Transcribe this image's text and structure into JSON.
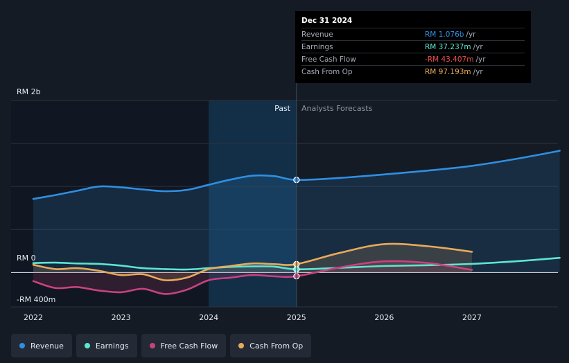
{
  "chart_data": {
    "type": "line",
    "x_labels": [
      "2022",
      "2023",
      "2024",
      "2025",
      "2026",
      "2027"
    ],
    "y_labels": {
      "top": "RM 2b",
      "zero": "RM 0",
      "bottom": "-RM 400m"
    },
    "ylim": [
      -400,
      2000
    ],
    "xlim": [
      2021.9,
      2028.0
    ],
    "divider_x": 2025.0,
    "highlight_range": [
      2024.0,
      2025.0
    ],
    "past_label": "Past",
    "forecast_label": "Analysts Forecasts",
    "series": [
      {
        "name": "Revenue",
        "color": "#2f8fe3",
        "fill": true,
        "x": [
          2022.0,
          2022.25,
          2022.5,
          2022.75,
          2023.0,
          2023.25,
          2023.5,
          2023.75,
          2024.0,
          2024.25,
          2024.5,
          2024.75,
          2025.0,
          2025.5,
          2026.0,
          2026.5,
          2027.0,
          2027.5,
          2028.0
        ],
        "y": [
          855,
          900,
          950,
          1000,
          990,
          965,
          945,
          960,
          1020,
          1080,
          1125,
          1120,
          1076,
          1100,
          1140,
          1185,
          1240,
          1320,
          1415
        ]
      },
      {
        "name": "Earnings",
        "color": "#5ee5d0",
        "fill": false,
        "x": [
          2022.0,
          2022.25,
          2022.5,
          2022.75,
          2023.0,
          2023.25,
          2023.5,
          2023.75,
          2024.0,
          2024.25,
          2024.5,
          2024.75,
          2025.0,
          2025.5,
          2026.0,
          2026.5,
          2027.0,
          2027.5,
          2028.0
        ],
        "y": [
          110,
          115,
          105,
          100,
          80,
          50,
          40,
          35,
          50,
          65,
          70,
          68,
          37,
          55,
          75,
          85,
          100,
          130,
          170
        ]
      },
      {
        "name": "Free Cash Flow",
        "color": "#c9427f",
        "fill": true,
        "x": [
          2022.0,
          2022.25,
          2022.5,
          2022.75,
          2023.0,
          2023.25,
          2023.5,
          2023.75,
          2024.0,
          2024.25,
          2024.5,
          2024.75,
          2025.0,
          2025.5,
          2026.0,
          2026.5,
          2027.0
        ],
        "y": [
          -100,
          -180,
          -170,
          -210,
          -230,
          -190,
          -250,
          -200,
          -90,
          -60,
          -30,
          -45,
          -43.4,
          60,
          130,
          110,
          30
        ]
      },
      {
        "name": "Cash From Op",
        "color": "#e9aa5b",
        "fill": true,
        "x": [
          2022.0,
          2022.25,
          2022.5,
          2022.75,
          2023.0,
          2023.25,
          2023.5,
          2023.75,
          2024.0,
          2024.25,
          2024.5,
          2024.75,
          2025.0,
          2025.5,
          2026.0,
          2026.5,
          2027.0
        ],
        "y": [
          90,
          40,
          50,
          20,
          -30,
          -20,
          -90,
          -60,
          40,
          75,
          105,
          97,
          97.2,
          230,
          330,
          305,
          240
        ]
      }
    ]
  },
  "tooltip": {
    "date": "Dec 31 2024",
    "rows": [
      {
        "label": "Revenue",
        "value": "RM 1.076b",
        "unit": "/yr",
        "color": "#2f8fe3"
      },
      {
        "label": "Earnings",
        "value": "RM 37.237m",
        "unit": "/yr",
        "color": "#5ee5d0"
      },
      {
        "label": "Free Cash Flow",
        "value": "-RM 43.407m",
        "unit": "/yr",
        "color": "#ee4d4d"
      },
      {
        "label": "Cash From Op",
        "value": "RM 97.193m",
        "unit": "/yr",
        "color": "#e9aa5b"
      }
    ]
  },
  "legend": [
    {
      "label": "Revenue",
      "color": "#2f8fe3"
    },
    {
      "label": "Earnings",
      "color": "#5ee5d0"
    },
    {
      "label": "Free Cash Flow",
      "color": "#c9427f"
    },
    {
      "label": "Cash From Op",
      "color": "#e9aa5b"
    }
  ]
}
